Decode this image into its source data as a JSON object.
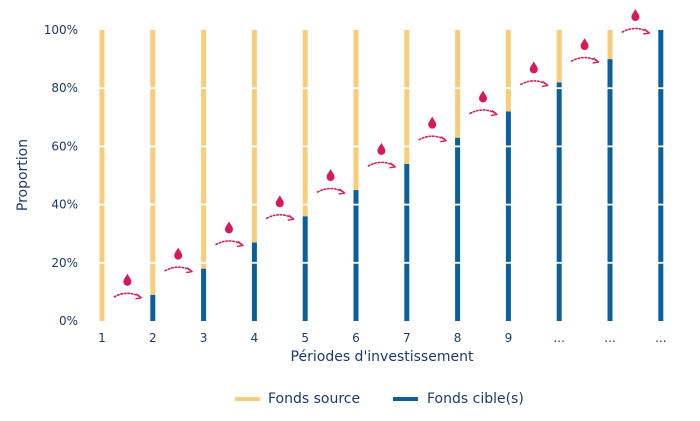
{
  "chart_data": {
    "type": "bar",
    "stacked": true,
    "categories": [
      "1",
      "2",
      "3",
      "4",
      "5",
      "6",
      "7",
      "8",
      "9",
      "...",
      "...",
      "..."
    ],
    "series": [
      {
        "name": "Fonds source",
        "color": "#f7cd7a",
        "values": [
          100,
          91,
          82,
          73,
          64,
          55,
          46,
          37,
          28,
          18,
          10,
          0
        ]
      },
      {
        "name": "Fonds cible(s)",
        "color": "#0b5f9a",
        "values": [
          0,
          9,
          18,
          27,
          36,
          45,
          54,
          63,
          72,
          82,
          90,
          100
        ]
      }
    ],
    "ylim": [
      0,
      100
    ],
    "yticks": [
      "0%",
      "20%",
      "40%",
      "60%",
      "80%",
      "100%"
    ],
    "ylabel": "Proportion",
    "xlabel": "Périodes d'investissement",
    "grid": false,
    "legend_position": "bottom",
    "transition_markers": {
      "icon": "drop-icon",
      "color": "#d7195a",
      "count": 11
    }
  }
}
